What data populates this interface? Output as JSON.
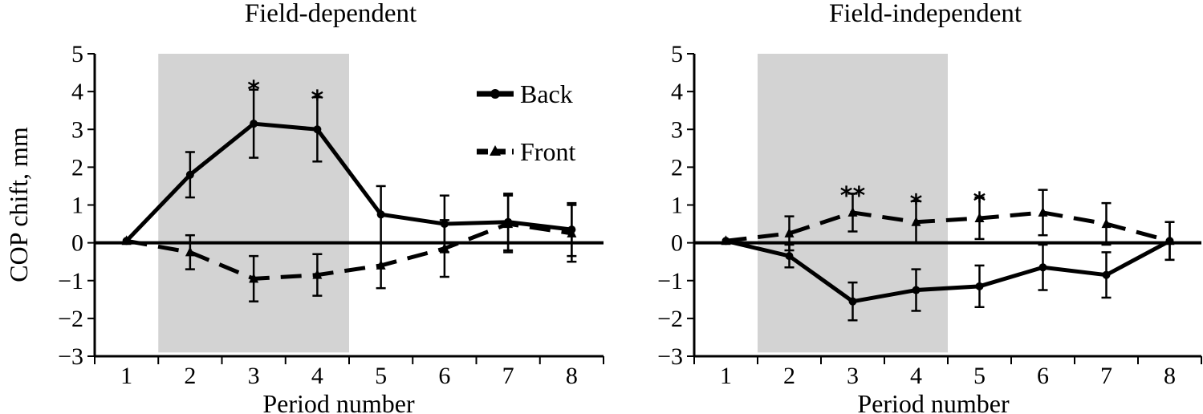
{
  "figure": {
    "ylabel": "COP chift, mm",
    "colors": {
      "ink": "#000000",
      "shade": "#d3d3d3",
      "background": "#ffffff"
    }
  },
  "chart_data": [
    {
      "type": "line",
      "title": "Field-dependent",
      "xlabel": "Period number",
      "ylabel": "COP chift, mm",
      "categories": [
        1,
        2,
        3,
        4,
        5,
        6,
        7,
        8
      ],
      "xlim": [
        0.5,
        8.5
      ],
      "ylim": [
        -3,
        5
      ],
      "yticks": [
        -3,
        -2,
        -1,
        0,
        1,
        2,
        3,
        4,
        5
      ],
      "shaded_period_range": [
        1.5,
        4.5
      ],
      "legend_placement": "top-right",
      "series": [
        {
          "name": "Back",
          "style": "solid",
          "marker": "circle",
          "values": [
            0.05,
            1.8,
            3.15,
            3.0,
            0.75,
            0.5,
            0.55,
            0.35
          ],
          "errors": [
            0.0,
            0.6,
            0.9,
            0.85,
            0.75,
            0.75,
            0.75,
            0.7
          ]
        },
        {
          "name": "Front",
          "style": "dashed",
          "marker": "triangle",
          "values": [
            0.05,
            -0.25,
            -0.95,
            -0.85,
            -0.6,
            -0.15,
            0.5,
            0.25
          ],
          "errors": [
            0.0,
            0.45,
            0.6,
            0.55,
            0.6,
            0.75,
            0.75,
            0.75
          ]
        }
      ],
      "annotations": [
        {
          "x": 3,
          "y": 4.3,
          "text": "*"
        },
        {
          "x": 4,
          "y": 4.05,
          "text": "*"
        }
      ]
    },
    {
      "type": "line",
      "title": "Field-independent",
      "xlabel": "Period number",
      "ylabel": "",
      "categories": [
        1,
        2,
        3,
        4,
        5,
        6,
        7,
        8
      ],
      "xlim": [
        0.5,
        8.5
      ],
      "ylim": [
        -3,
        5
      ],
      "yticks": [
        -3,
        -2,
        -1,
        0,
        1,
        2,
        3,
        4,
        5
      ],
      "shaded_period_range": [
        1.5,
        4.5
      ],
      "legend_placement": "",
      "series": [
        {
          "name": "Back",
          "style": "solid",
          "marker": "circle",
          "values": [
            0.05,
            -0.35,
            -1.55,
            -1.25,
            -1.15,
            -0.65,
            -0.85,
            0.05
          ],
          "errors": [
            0.0,
            0.3,
            0.5,
            0.55,
            0.55,
            0.6,
            0.6,
            0.5
          ]
        },
        {
          "name": "Front",
          "style": "dashed",
          "marker": "triangle",
          "values": [
            0.05,
            0.25,
            0.8,
            0.55,
            0.65,
            0.8,
            0.5,
            0.05
          ],
          "errors": [
            0.0,
            0.45,
            0.5,
            0.55,
            0.55,
            0.6,
            0.55,
            0.5
          ]
        }
      ],
      "annotations": [
        {
          "x": 3,
          "y": 1.5,
          "text": "**"
        },
        {
          "x": 4,
          "y": 1.3,
          "text": "*"
        },
        {
          "x": 5,
          "y": 1.35,
          "text": "*"
        }
      ]
    }
  ]
}
